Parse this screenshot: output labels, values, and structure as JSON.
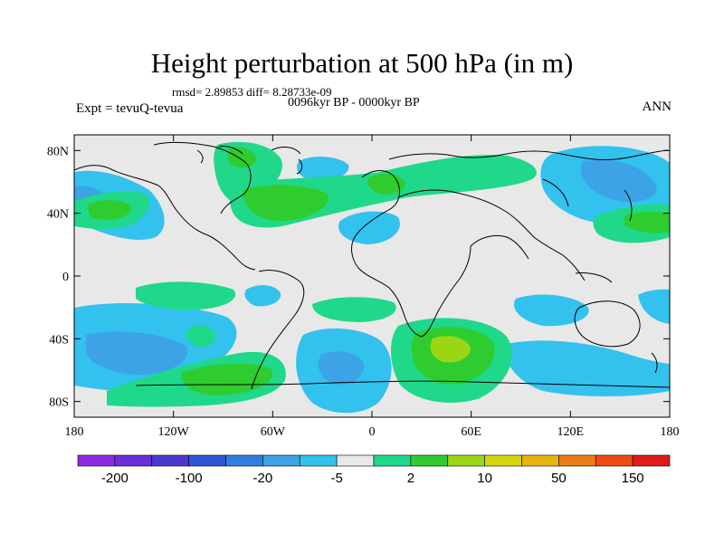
{
  "title": "Height perturbation at 500 hPa (in m)",
  "subtitle": "rmsd= 2.89853  diff= 8.28733e-09",
  "period": "0096kyr BP - 0000kyr BP",
  "left_label": "Expt = tevuQ-tevua",
  "right_label": "ANN",
  "colors": {
    "land_background": "#e8e8e8",
    "coastline": "#000000",
    "palette": [
      "#8a2be2",
      "#6a2fd8",
      "#4b3ad0",
      "#2f55d6",
      "#2f7fe0",
      "#3ca3e6",
      "#33c1ee",
      "#e8e8e8",
      "#1fd88a",
      "#2fcc2f",
      "#9bd615",
      "#d6d60f",
      "#e8b40f",
      "#ec7d12",
      "#ee4a12",
      "#e01b1b"
    ]
  },
  "lon_ticks": [
    "180",
    "120W",
    "60W",
    "0",
    "60E",
    "120E",
    "180"
  ],
  "lat_ticks": [
    "80N",
    "40N",
    "0",
    "40S",
    "80S"
  ],
  "colorbar_labels": [
    "-200",
    "-100",
    "-20",
    "-5",
    "2",
    "10",
    "50",
    "150"
  ]
}
